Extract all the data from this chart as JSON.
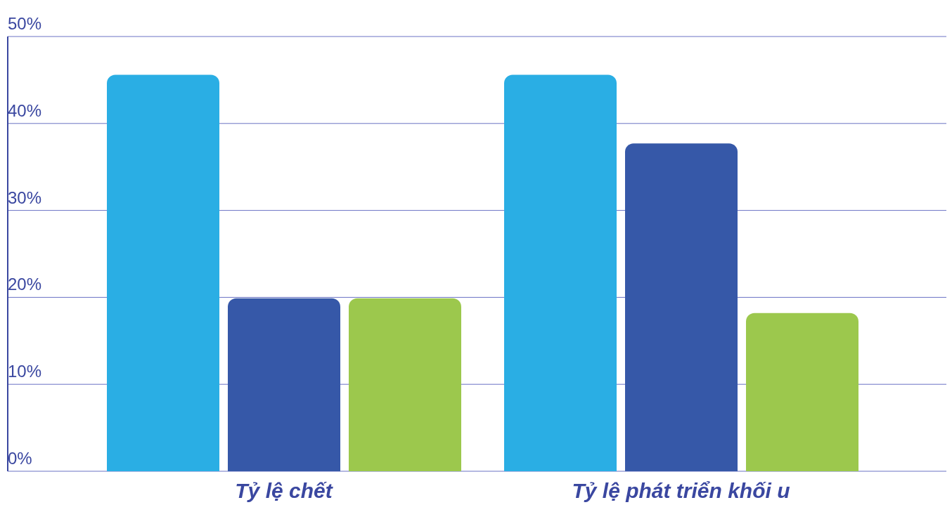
{
  "chart_data": {
    "type": "bar",
    "categories": [
      "Tỷ lệ chết",
      "Tỷ lệ phát triển khối u"
    ],
    "series": [
      {
        "color": "#2aaee4",
        "values": [
          45.6,
          45.6
        ]
      },
      {
        "color": "#3658a8",
        "values": [
          19.9,
          37.7
        ]
      },
      {
        "color": "#9cc84d",
        "values": [
          19.9,
          18.2
        ]
      }
    ],
    "ylim": [
      0,
      50
    ],
    "yticks": [
      {
        "value": 0,
        "label": "0%"
      },
      {
        "value": 10,
        "label": "10%"
      },
      {
        "value": 20,
        "label": "20%"
      },
      {
        "value": 30,
        "label": "30%"
      },
      {
        "value": 40,
        "label": "40%"
      },
      {
        "value": 50,
        "label": "50%"
      }
    ],
    "grid": "y",
    "legend": false
  }
}
